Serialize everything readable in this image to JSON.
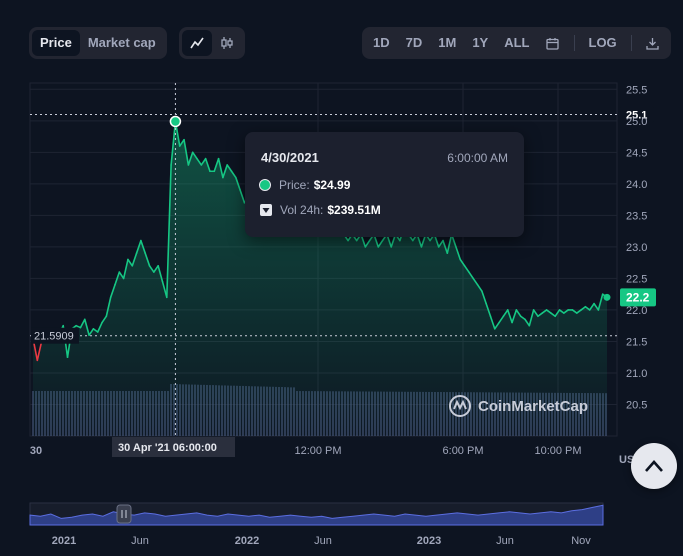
{
  "toolbar": {
    "metric_tabs": [
      "Price",
      "Market cap"
    ],
    "active_metric": "Price",
    "chart_type_icons": [
      "line-chart-icon",
      "candlestick-icon"
    ],
    "range_tabs": [
      "1D",
      "7D",
      "1M",
      "1Y",
      "ALL"
    ],
    "calendar_icon": "calendar-icon",
    "log_label": "LOG",
    "download_icon": "download-icon"
  },
  "tooltip": {
    "date": "4/30/2021",
    "time": "6:00:00 AM",
    "price_label": "Price:",
    "price_value": "$24.99",
    "volume_label": "Vol 24h:",
    "volume_value": "$239.51M"
  },
  "crosshair_label": "30 Apr '21  06:00:00",
  "watermark": "CoinMarketCap",
  "currency_label": "USD",
  "colors": {
    "up": "#16c784",
    "down": "#ea3943",
    "background": "#0d1421",
    "volume": "#4a5780"
  },
  "chart_data": {
    "type": "line",
    "x_ticks": [
      "30",
      "12:00 PM",
      "6:00 PM",
      "10:00 PM"
    ],
    "y_ticks": [
      20.5,
      21.0,
      21.5,
      22.0,
      22.5,
      23.0,
      23.5,
      24.0,
      24.5,
      25.0,
      25.5
    ],
    "ylim": [
      20.0,
      25.6
    ],
    "grid": true,
    "reference_line": {
      "value": 21.5909,
      "label": "21.5909"
    },
    "high_marker": {
      "value": 25.1,
      "label": "25.1"
    },
    "last_price": {
      "value": 22.2,
      "label": "22.2"
    },
    "hover_point": {
      "x": 33,
      "value": 24.99
    },
    "series": [
      {
        "x": [
          0,
          1,
          2,
          3,
          4,
          5,
          6,
          7,
          8,
          9,
          10,
          11,
          12,
          13,
          14,
          15,
          16,
          17,
          18,
          19,
          20,
          21,
          22,
          23,
          24,
          25,
          26,
          27,
          28,
          29,
          30,
          31,
          32,
          33,
          34,
          35,
          36,
          37,
          38,
          39,
          40,
          41,
          42,
          43,
          44,
          45,
          46,
          47,
          48,
          49,
          50,
          51,
          52,
          53,
          54,
          55,
          56,
          57,
          58,
          59,
          60,
          61,
          62,
          63,
          64,
          65,
          66,
          67,
          68,
          69,
          70,
          71,
          72,
          73,
          74,
          75,
          76,
          77,
          78,
          79,
          80,
          81,
          82,
          83,
          84,
          85,
          86,
          87,
          88,
          89,
          90,
          91,
          92,
          93,
          94,
          95,
          96,
          97,
          98,
          99,
          100,
          101,
          102,
          103,
          104,
          105,
          106,
          107,
          108,
          109,
          110,
          111,
          112,
          113,
          114,
          115,
          116,
          117,
          118,
          119,
          120,
          121,
          122,
          123,
          124,
          125,
          126,
          127,
          128,
          129,
          130,
          131,
          132,
          133
        ],
        "values": [
          21.55,
          21.2,
          21.5,
          21.6,
          21.65,
          21.7,
          21.6,
          21.75,
          21.25,
          21.7,
          21.75,
          21.72,
          21.85,
          21.6,
          21.7,
          21.65,
          21.8,
          21.9,
          22.2,
          22.4,
          22.6,
          22.5,
          22.8,
          22.7,
          22.9,
          23.1,
          22.9,
          22.7,
          22.6,
          22.7,
          22.45,
          22.2,
          24.3,
          24.99,
          24.6,
          24.7,
          24.3,
          24.5,
          24.4,
          24.3,
          24.4,
          24.2,
          24.2,
          24.4,
          24.1,
          24.3,
          24.2,
          24.1,
          23.9,
          23.7,
          23.8,
          23.6,
          23.7,
          23.8,
          23.7,
          23.8,
          23.7,
          23.8,
          23.7,
          23.6,
          23.5,
          23.6,
          23.5,
          23.4,
          23.5,
          23.3,
          23.4,
          23.3,
          23.2,
          23.3,
          23.2,
          23.3,
          23.2,
          23.1,
          23.2,
          23.1,
          23.2,
          23.0,
          23.1,
          23.2,
          23.0,
          23.1,
          23.2,
          23.0,
          23.2,
          23.1,
          23.3,
          23.2,
          23.1,
          23.2,
          23.0,
          23.2,
          23.1,
          23.2,
          23.0,
          23.1,
          22.9,
          23.2,
          23.0,
          22.8,
          22.7,
          22.6,
          22.5,
          22.4,
          22.3,
          22.1,
          21.9,
          21.7,
          21.8,
          21.9,
          22.0,
          21.8,
          22.0,
          21.9,
          21.85,
          21.75,
          22.0,
          21.9,
          21.95,
          22.0,
          21.95,
          21.9,
          22.0,
          21.95,
          22.0,
          22.0,
          21.95,
          22.0,
          22.05,
          22.0,
          22.1,
          22.0,
          22.25,
          22.2
        ]
      }
    ],
    "navigator_ticks": [
      "2021",
      "Jun",
      "2022",
      "Jun",
      "2023",
      "Jun",
      "Nov"
    ]
  }
}
